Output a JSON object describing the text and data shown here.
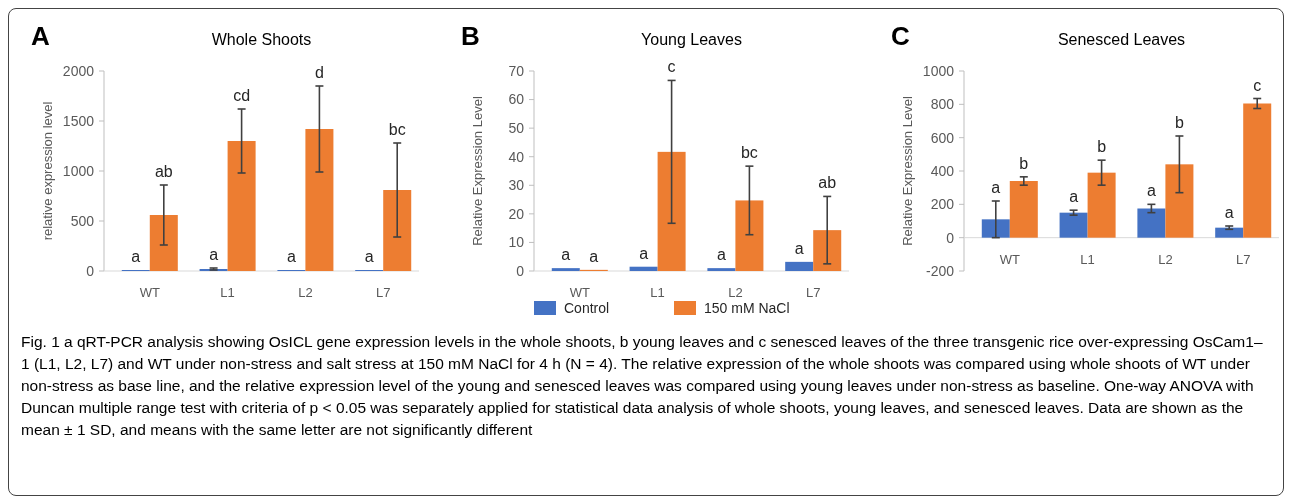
{
  "chart_data": [
    {
      "type": "bar",
      "title": "Whole Shoots",
      "ylabel": "relative expression level",
      "categories": [
        "WT",
        "L1",
        "L2",
        "L7"
      ],
      "ylim": [
        0,
        2000
      ],
      "yticks": [
        0,
        500,
        1000,
        1500,
        2000
      ],
      "series": [
        {
          "color": "#4472c4",
          "values": [
            10,
            20,
            10,
            10
          ],
          "errors": [
            null,
            10,
            null,
            null
          ]
        },
        {
          "color": "#ed7d31",
          "values": [
            560,
            1300,
            1420,
            810
          ],
          "errors": [
            300,
            320,
            430,
            470
          ]
        }
      ],
      "annotations": [
        "A",
        "a",
        "a",
        "a",
        "a",
        "ab",
        "cd",
        "d",
        "bc"
      ]
    },
    {
      "type": "bar",
      "title": "Young Leaves",
      "ylabel": "Relative Expression Level",
      "categories": [
        "WT",
        "L1",
        "L2",
        "L7"
      ],
      "ylim": [
        0,
        70
      ],
      "yticks": [
        0,
        10,
        20,
        30,
        40,
        50,
        60,
        70
      ],
      "legend": "bottom",
      "series": [
        {
          "name": "Control",
          "color": "#4472c4",
          "values": [
            1,
            1.5,
            1,
            3.2
          ],
          "errors": [
            null,
            null,
            null,
            null
          ]
        },
        {
          "name": "150 mM NaCl",
          "color": "#ed7d31",
          "values": [
            0.4,
            41.7,
            24.7,
            14.3
          ],
          "errors": [
            null,
            25,
            12,
            11.8
          ]
        }
      ],
      "annotations": [
        "B",
        "a",
        "a",
        "a",
        "a",
        "a",
        "c",
        "bc",
        "ab"
      ]
    },
    {
      "type": "bar",
      "title": "Senesced Leaves",
      "ylabel": "Relative Expression Level",
      "categories": [
        "WT",
        "L1",
        "L2",
        "L7"
      ],
      "ylim": [
        -200,
        1000
      ],
      "yticks": [
        -200,
        0,
        200,
        400,
        600,
        800,
        1000
      ],
      "series": [
        {
          "color": "#4472c4",
          "values": [
            110,
            150,
            175,
            60
          ],
          "errors": [
            110,
            15,
            25,
            10
          ]
        },
        {
          "color": "#ed7d31",
          "values": [
            340,
            390,
            440,
            805
          ],
          "errors": [
            25,
            75,
            170,
            30
          ]
        }
      ],
      "annotations": [
        "C",
        "a",
        "a",
        "a",
        "a",
        "b",
        "b",
        "b",
        "c",
        "Fig. 1 a qRT-PCR analysis showing OsICL gene expression levels in the whole shoots, b young leaves and c senesced leaves of the three transgenic rice over-expressing OsCam1–1 (L1, L2, L7) and WT under non-stress and salt stress at 150 mM NaCl for 4 h (N = 4). The relative expression of the whole shoots was compared using whole shoots of WT under non-stress as base line, and the relative expression level of the young and senesced leaves was compared using young leaves under non-stress as baseline. One-way ANOVA with Duncan multiple range test with criteria of p < 0.05 was separately applied for statistical data analysis of whole shoots, young leaves, and senesced leaves. Data are shown as the mean ± 1 SD, and means with the same letter are not significantly different"
      ]
    }
  ]
}
